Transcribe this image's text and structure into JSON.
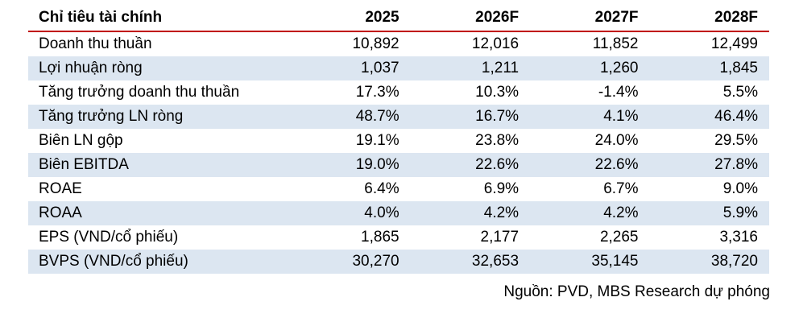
{
  "table": {
    "header": [
      "Chỉ tiêu tài chính",
      "2025",
      "2026F",
      "2027F",
      "2028F"
    ],
    "rows": [
      [
        "Doanh thu thuần",
        "10,892",
        "12,016",
        "11,852",
        "12,499"
      ],
      [
        "Lợi nhuận ròng",
        "1,037",
        "1,211",
        "1,260",
        "1,845"
      ],
      [
        "Tăng trưởng doanh thu thuần",
        "17.3%",
        "10.3%",
        "-1.4%",
        "5.5%"
      ],
      [
        "Tăng trưởng LN ròng",
        "48.7%",
        "16.7%",
        "4.1%",
        "46.4%"
      ],
      [
        "Biên LN gộp",
        "19.1%",
        "23.8%",
        "24.0%",
        "29.5%"
      ],
      [
        "Biên EBITDA",
        "19.0%",
        "22.6%",
        "22.6%",
        "27.8%"
      ],
      [
        "ROAE",
        "6.4%",
        "6.9%",
        "6.7%",
        "9.0%"
      ],
      [
        "ROAA",
        "4.0%",
        "4.2%",
        "4.2%",
        "5.9%"
      ],
      [
        "EPS (VND/cổ phiếu)",
        "1,865",
        "2,177",
        "2,265",
        "3,316"
      ],
      [
        "BVPS (VND/cổ phiếu)",
        "30,270",
        "32,653",
        "35,145",
        "38,720"
      ]
    ],
    "source": "Nguồn: PVD, MBS Research dự phóng"
  }
}
